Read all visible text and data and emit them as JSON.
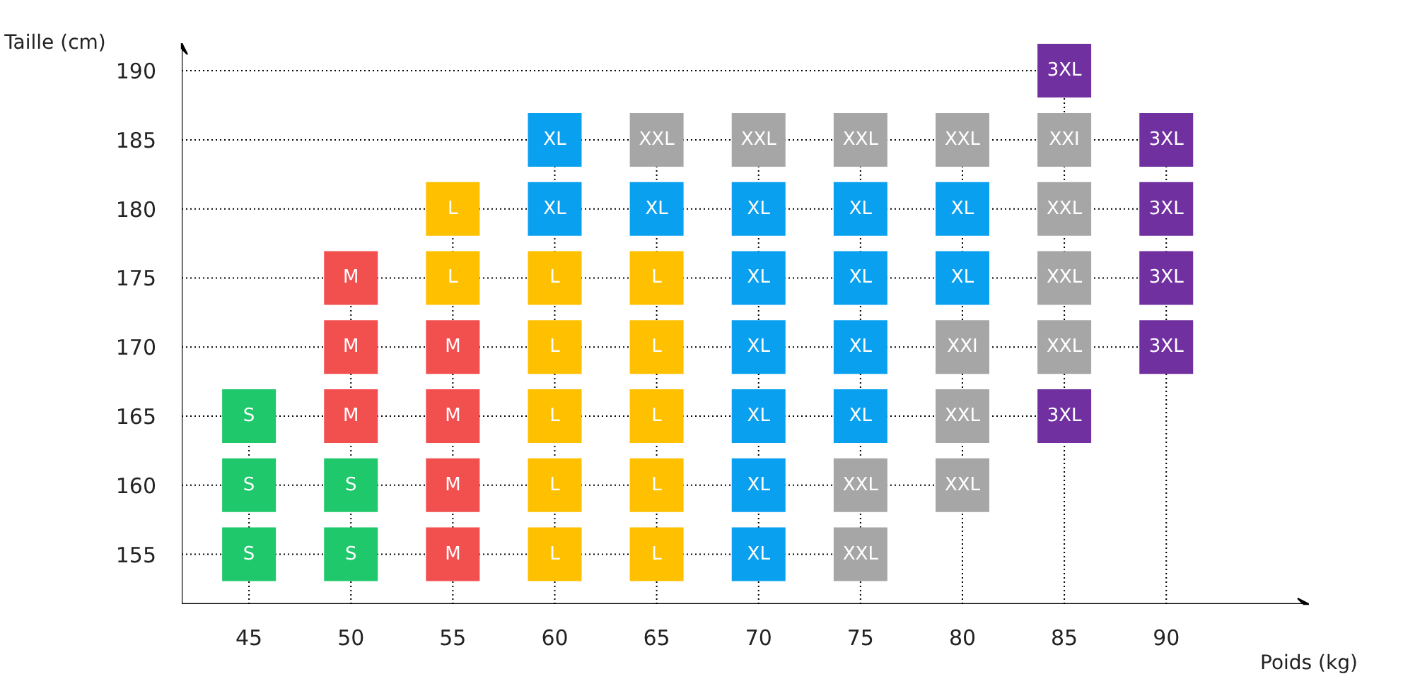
{
  "chart_data": {
    "type": "scatter",
    "xlabel": "Poids (kg)",
    "ylabel": "Taille (cm)",
    "xlim": [
      41.7,
      97
    ],
    "ylim": [
      151.4,
      192
    ],
    "xticks": [
      45,
      50,
      55,
      60,
      65,
      70,
      75,
      80,
      85,
      90
    ],
    "yticks": [
      155,
      160,
      165,
      170,
      175,
      180,
      185,
      190
    ],
    "marker": "square",
    "grid": true,
    "series": [
      {
        "name": "S",
        "color": "#1ec86b",
        "x": [
          45,
          45,
          45,
          50,
          50
        ],
        "values": [
          165,
          160,
          155,
          160,
          155
        ]
      },
      {
        "name": "M",
        "color": "#f24f4f",
        "x": [
          50,
          50,
          50,
          55,
          55,
          55,
          55
        ],
        "values": [
          175,
          170,
          165,
          170,
          165,
          160,
          155
        ]
      },
      {
        "name": "L",
        "color": "#ffc000",
        "x": [
          55,
          55,
          60,
          60,
          60,
          60,
          60,
          65,
          65,
          65,
          65,
          65
        ],
        "values": [
          180,
          175,
          175,
          170,
          165,
          160,
          155,
          175,
          170,
          165,
          160,
          155
        ]
      },
      {
        "name": "XL",
        "color": "#0aa0f0",
        "x": [
          60,
          60,
          65,
          70,
          70,
          70,
          70,
          70,
          70,
          75,
          75,
          75,
          75,
          80,
          80
        ],
        "values": [
          185,
          180,
          180,
          180,
          175,
          170,
          165,
          160,
          155,
          180,
          175,
          170,
          165,
          180,
          175
        ]
      },
      {
        "name": "XXL",
        "color": "#a6a6a6",
        "x": [
          65,
          70,
          75,
          80,
          75,
          75,
          80,
          80,
          85,
          85,
          85
        ],
        "values": [
          185,
          185,
          185,
          185,
          160,
          155,
          165,
          160,
          180,
          175,
          170
        ]
      },
      {
        "name": "XXI",
        "color": "#a6a6a6",
        "x": [
          85,
          80
        ],
        "values": [
          185,
          170
        ]
      },
      {
        "name": "3XL",
        "color": "#7030a0",
        "x": [
          85,
          85,
          90,
          90,
          90,
          90
        ],
        "values": [
          190,
          165,
          185,
          180,
          175,
          170
        ]
      }
    ]
  }
}
